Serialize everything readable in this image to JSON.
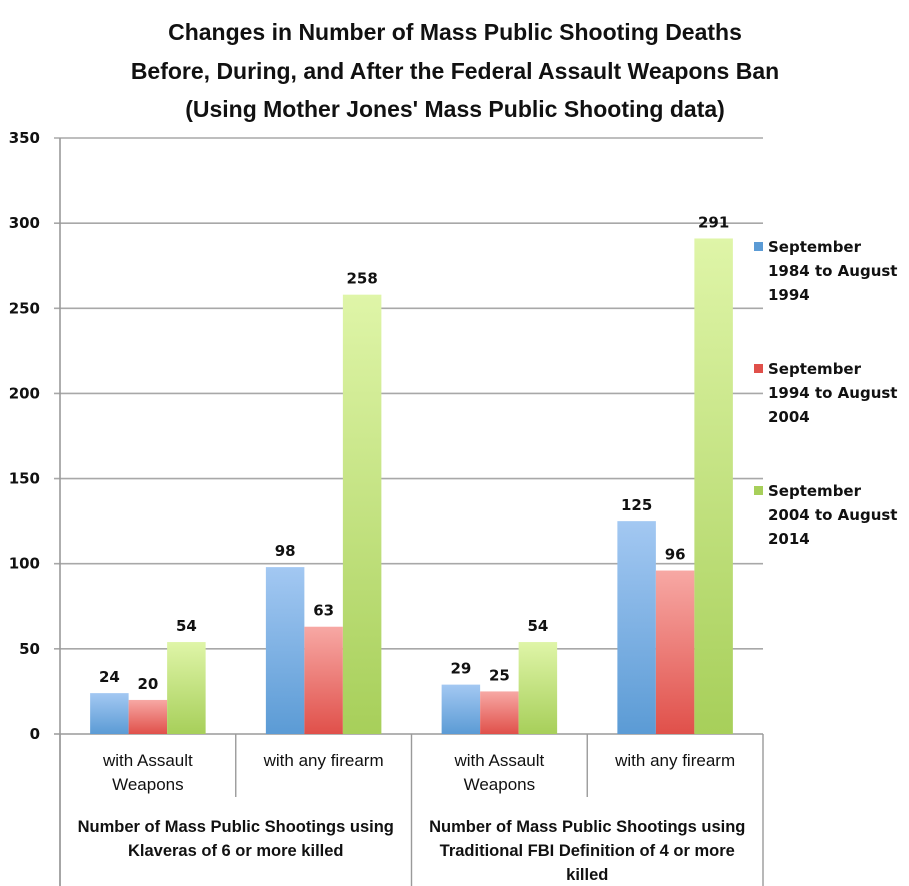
{
  "chart_data": {
    "type": "bar",
    "title": [
      "Changes in Number of Mass Public Shooting Deaths",
      "Before, During, and After the Federal Assault Weapons Ban",
      "(Using Mother Jones' Mass Public Shooting data)"
    ],
    "xlabel": "",
    "ylabel": "",
    "ylim": [
      0,
      350
    ],
    "yticks": [
      "0",
      "50",
      "100",
      "150",
      "200",
      "250",
      "300",
      "350"
    ],
    "ytick_values": [
      0,
      50,
      100,
      150,
      200,
      250,
      300,
      350
    ],
    "grid": true,
    "legend_position": "right",
    "categories": [
      [
        "with Assault",
        "Weapons"
      ],
      [
        "with any firearm"
      ],
      [
        "with Assault",
        "Weapons"
      ],
      [
        "with any firearm"
      ]
    ],
    "groups": [
      {
        "label": [
          "Number of Mass Public Shootings using",
          "Klaveras of 6 or more killed"
        ],
        "categories": [
          0,
          1
        ]
      },
      {
        "label": [
          "Number of Mass Public Shootings using",
          "Traditional FBI Definition of 4 or more",
          "killed"
        ],
        "categories": [
          2,
          3
        ]
      }
    ],
    "series": [
      {
        "name": [
          "September",
          "1984 to August",
          "1994"
        ],
        "color": "#5b9bd5",
        "color_light": "#a3c8f2",
        "values": [
          24,
          98,
          29,
          125
        ],
        "labels": [
          "24",
          "98",
          "29",
          "125"
        ]
      },
      {
        "name": [
          "September",
          "1994 to August",
          "2004"
        ],
        "color": "#e0504a",
        "color_light": "#f7a8a4",
        "values": [
          20,
          63,
          25,
          96
        ],
        "labels": [
          "20",
          "63",
          "25",
          "96"
        ]
      },
      {
        "name": [
          "September",
          "2004 to August",
          "2014"
        ],
        "color": "#a7cf5a",
        "color_light": "#dff5a8",
        "values": [
          54,
          258,
          54,
          291
        ],
        "labels": [
          "54",
          "258",
          "54",
          "291"
        ]
      }
    ]
  }
}
